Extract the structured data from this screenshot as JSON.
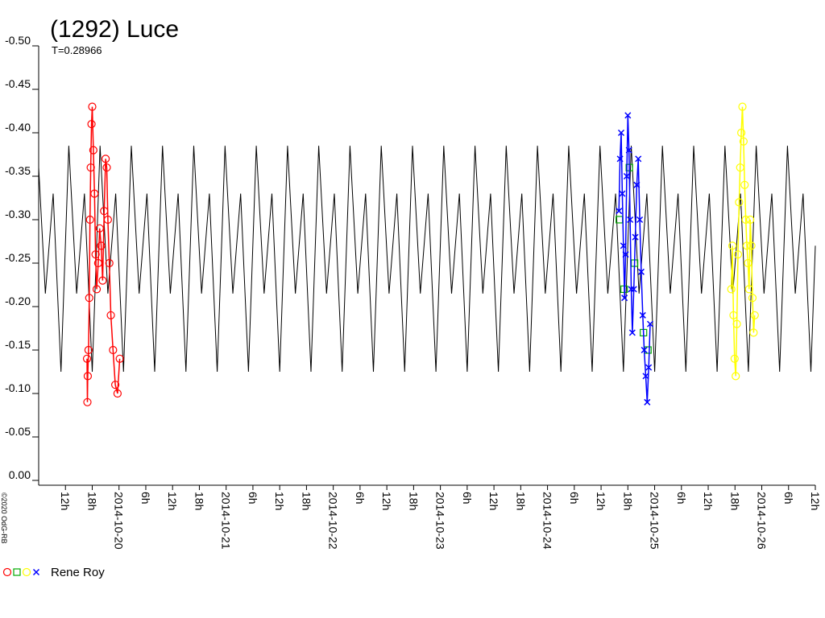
{
  "chart_data": {
    "type": "line",
    "title": "(1292) Luce",
    "subtitle": "T=0.28966",
    "copyright": "©2020 OdG-RB",
    "legend_label": "Rene Roy",
    "ylim": [
      0,
      -0.5
    ],
    "yticks": [
      {
        "value": 0,
        "label": "0.00"
      },
      {
        "value": -0.05,
        "label": "-0.05"
      },
      {
        "value": -0.1,
        "label": "-0.10"
      },
      {
        "value": -0.15,
        "label": "-0.15"
      },
      {
        "value": -0.2,
        "label": "-0.20"
      },
      {
        "value": -0.25,
        "label": "-0.25"
      },
      {
        "value": -0.3,
        "label": "-0.30"
      },
      {
        "value": -0.35,
        "label": "-0.35"
      },
      {
        "value": -0.4,
        "label": "-0.40"
      },
      {
        "value": -0.45,
        "label": "-0.45"
      },
      {
        "value": -0.5,
        "label": "-0.50"
      }
    ],
    "xlim": [
      "2014-10-19 06:00",
      "2014-10-26 12:00"
    ],
    "xticks": [
      {
        "value": "2014-10-19 12:00",
        "label": "12h"
      },
      {
        "value": "2014-10-19 18:00",
        "label": "18h"
      },
      {
        "value": "2014-10-20 00:00",
        "label": "2014-10-20"
      },
      {
        "value": "2014-10-20 06:00",
        "label": "6h"
      },
      {
        "value": "2014-10-20 12:00",
        "label": "12h"
      },
      {
        "value": "2014-10-20 18:00",
        "label": "18h"
      },
      {
        "value": "2014-10-21 00:00",
        "label": "2014-10-21"
      },
      {
        "value": "2014-10-21 06:00",
        "label": "6h"
      },
      {
        "value": "2014-10-21 12:00",
        "label": "12h"
      },
      {
        "value": "2014-10-21 18:00",
        "label": "18h"
      },
      {
        "value": "2014-10-22 00:00",
        "label": "2014-10-22"
      },
      {
        "value": "2014-10-22 06:00",
        "label": "6h"
      },
      {
        "value": "2014-10-22 12:00",
        "label": "12h"
      },
      {
        "value": "2014-10-22 18:00",
        "label": "18h"
      },
      {
        "value": "2014-10-23 00:00",
        "label": "2014-10-23"
      },
      {
        "value": "2014-10-23 06:00",
        "label": "6h"
      },
      {
        "value": "2014-10-23 12:00",
        "label": "12h"
      },
      {
        "value": "2014-10-23 18:00",
        "label": "18h"
      },
      {
        "value": "2014-10-24 00:00",
        "label": "2014-10-24"
      },
      {
        "value": "2014-10-24 06:00",
        "label": "6h"
      },
      {
        "value": "2014-10-24 12:00",
        "label": "12h"
      },
      {
        "value": "2014-10-24 18:00",
        "label": "18h"
      },
      {
        "value": "2014-10-25 00:00",
        "label": "2014-10-25"
      },
      {
        "value": "2014-10-25 06:00",
        "label": "6h"
      },
      {
        "value": "2014-10-25 12:00",
        "label": "12h"
      },
      {
        "value": "2014-10-25 18:00",
        "label": "18h"
      },
      {
        "value": "2014-10-26 00:00",
        "label": "2014-10-26"
      },
      {
        "value": "2014-10-26 06:00",
        "label": "6h"
      },
      {
        "value": "2014-10-26 12:00",
        "label": "12h"
      }
    ],
    "series": [
      {
        "type": "line",
        "color": "#000000",
        "x": [
          "2014-10-19 06:00",
          "2014-10-19 07:30",
          "2014-10-19 09:15",
          "2014-10-19 11:00",
          "2014-10-19 12:45",
          "2014-10-19 14:30",
          "2014-10-19 16:15",
          "2014-10-19 18:00",
          "2014-10-19 19:45",
          "2014-10-19 21:30",
          "2014-10-19 23:15",
          "2014-10-20 01:00",
          "2014-10-20 02:45",
          "2014-10-20 04:30",
          "2014-10-20 06:15",
          "2014-10-20 08:00",
          "2014-10-20 09:45",
          "2014-10-20 11:30",
          "2014-10-20 13:15",
          "2014-10-20 15:00",
          "2014-10-20 16:45",
          "2014-10-20 18:30",
          "2014-10-20 20:15",
          "2014-10-20 22:00",
          "2014-10-20 23:45",
          "2014-10-21 01:30",
          "2014-10-21 03:15",
          "2014-10-21 05:00",
          "2014-10-21 06:45",
          "2014-10-21 08:30",
          "2014-10-21 10:15",
          "2014-10-21 12:00",
          "2014-10-21 13:45",
          "2014-10-21 15:30",
          "2014-10-21 17:15",
          "2014-10-21 19:00",
          "2014-10-21 20:45",
          "2014-10-21 22:30",
          "2014-10-22 00:15",
          "2014-10-22 02:00",
          "2014-10-22 03:45",
          "2014-10-22 05:30",
          "2014-10-22 07:15",
          "2014-10-22 09:00",
          "2014-10-22 10:45",
          "2014-10-22 12:30",
          "2014-10-22 14:15",
          "2014-10-22 16:00",
          "2014-10-22 17:45",
          "2014-10-22 19:30",
          "2014-10-22 21:15",
          "2014-10-22 23:00",
          "2014-10-23 00:45",
          "2014-10-23 02:30",
          "2014-10-23 04:15",
          "2014-10-23 06:00",
          "2014-10-23 07:45",
          "2014-10-23 09:30",
          "2014-10-23 11:15",
          "2014-10-23 13:00",
          "2014-10-23 14:45",
          "2014-10-23 16:30",
          "2014-10-23 18:15",
          "2014-10-23 20:00",
          "2014-10-23 21:45",
          "2014-10-23 23:30",
          "2014-10-24 01:15",
          "2014-10-24 03:00",
          "2014-10-24 04:45",
          "2014-10-24 06:30",
          "2014-10-24 08:15",
          "2014-10-24 10:00",
          "2014-10-24 11:45",
          "2014-10-24 13:30",
          "2014-10-24 15:15",
          "2014-10-24 17:00",
          "2014-10-24 18:45",
          "2014-10-24 20:30",
          "2014-10-24 22:15",
          "2014-10-25 00:00",
          "2014-10-25 01:45",
          "2014-10-25 03:30",
          "2014-10-25 05:15",
          "2014-10-25 07:00",
          "2014-10-25 08:45",
          "2014-10-25 10:30",
          "2014-10-25 12:15",
          "2014-10-25 14:00",
          "2014-10-25 15:45",
          "2014-10-25 17:30",
          "2014-10-25 19:15",
          "2014-10-25 21:00",
          "2014-10-25 22:45",
          "2014-10-26 00:30",
          "2014-10-26 02:15",
          "2014-10-26 04:00",
          "2014-10-26 05:45",
          "2014-10-26 07:30",
          "2014-10-26 09:15",
          "2014-10-26 11:00",
          "2014-10-26 12:00"
        ],
        "values": [
          -0.36,
          -0.215,
          -0.33,
          -0.125,
          -0.385,
          -0.215,
          -0.33,
          -0.125,
          -0.385,
          -0.215,
          -0.33,
          -0.125,
          -0.385,
          -0.215,
          -0.33,
          -0.125,
          -0.385,
          -0.215,
          -0.33,
          -0.125,
          -0.385,
          -0.215,
          -0.33,
          -0.125,
          -0.385,
          -0.215,
          -0.33,
          -0.125,
          -0.385,
          -0.215,
          -0.33,
          -0.125,
          -0.385,
          -0.215,
          -0.33,
          -0.125,
          -0.385,
          -0.215,
          -0.33,
          -0.125,
          -0.385,
          -0.215,
          -0.33,
          -0.125,
          -0.385,
          -0.215,
          -0.33,
          -0.125,
          -0.385,
          -0.215,
          -0.33,
          -0.125,
          -0.385,
          -0.215,
          -0.33,
          -0.125,
          -0.385,
          -0.215,
          -0.33,
          -0.125,
          -0.385,
          -0.215,
          -0.33,
          -0.125,
          -0.385,
          -0.215,
          -0.33,
          -0.125,
          -0.385,
          -0.215,
          -0.33,
          -0.125,
          -0.385,
          -0.215,
          -0.33,
          -0.125,
          -0.385,
          -0.215,
          -0.33,
          -0.125,
          -0.385,
          -0.215,
          -0.33,
          -0.125,
          -0.385,
          -0.215,
          -0.33,
          -0.125,
          -0.385,
          -0.215,
          -0.33,
          -0.125,
          -0.385,
          -0.215,
          -0.33,
          -0.125,
          -0.385,
          -0.215,
          -0.33,
          -0.125,
          -0.27
        ]
      },
      {
        "type": "scatter",
        "color": "#ff0000",
        "marker": "circle",
        "line": true,
        "x": [
          "2014-10-19 16:50",
          "2014-10-19 16:55",
          "2014-10-19 17:00",
          "2014-10-19 17:10",
          "2014-10-19 17:20",
          "2014-10-19 17:30",
          "2014-10-19 17:40",
          "2014-10-19 17:50",
          "2014-10-19 18:00",
          "2014-10-19 18:15",
          "2014-10-19 18:30",
          "2014-10-19 18:45",
          "2014-10-19 19:00",
          "2014-10-19 19:20",
          "2014-10-19 19:40",
          "2014-10-19 20:00",
          "2014-10-19 20:20",
          "2014-10-19 20:40",
          "2014-10-19 21:00",
          "2014-10-19 21:15",
          "2014-10-19 21:30",
          "2014-10-19 21:50",
          "2014-10-19 22:10",
          "2014-10-19 22:40",
          "2014-10-19 23:10",
          "2014-10-19 23:40",
          "2014-10-20 00:10"
        ],
        "values": [
          -0.14,
          -0.09,
          -0.12,
          -0.15,
          -0.21,
          -0.3,
          -0.36,
          -0.41,
          -0.43,
          -0.38,
          -0.33,
          -0.26,
          -0.22,
          -0.25,
          -0.29,
          -0.27,
          -0.23,
          -0.31,
          -0.37,
          -0.36,
          -0.3,
          -0.25,
          -0.19,
          -0.15,
          -0.11,
          -0.1,
          -0.14
        ]
      },
      {
        "type": "scatter",
        "color": "#00aa00",
        "marker": "square",
        "line": false,
        "x": [
          "2014-10-24 16:05",
          "2014-10-24 17:10",
          "2014-10-24 18:20",
          "2014-10-24 19:30",
          "2014-10-24 21:30",
          "2014-10-24 22:30"
        ],
        "values": [
          -0.3,
          -0.22,
          -0.36,
          -0.25,
          -0.17,
          -0.15
        ]
      },
      {
        "type": "scatter",
        "color": "#ffff00",
        "marker": "circle",
        "line": true,
        "x": [
          "2014-10-25 17:10",
          "2014-10-25 17:25",
          "2014-10-25 17:40",
          "2014-10-25 17:55",
          "2014-10-25 18:10",
          "2014-10-25 18:25",
          "2014-10-25 18:40",
          "2014-10-25 18:55",
          "2014-10-25 19:10",
          "2014-10-25 19:25",
          "2014-10-25 19:40",
          "2014-10-25 19:55",
          "2014-10-25 20:10",
          "2014-10-25 20:25",
          "2014-10-25 20:40",
          "2014-10-25 20:55",
          "2014-10-25 21:10",
          "2014-10-25 21:25",
          "2014-10-25 21:40",
          "2014-10-25 21:55",
          "2014-10-25 22:10",
          "2014-10-25 22:25"
        ],
        "values": [
          -0.22,
          -0.27,
          -0.19,
          -0.14,
          -0.12,
          -0.18,
          -0.26,
          -0.32,
          -0.36,
          -0.4,
          -0.43,
          -0.39,
          -0.34,
          -0.3,
          -0.27,
          -0.25,
          -0.22,
          -0.3,
          -0.27,
          -0.21,
          -0.17,
          -0.19
        ]
      },
      {
        "type": "scatter",
        "color": "#0000ff",
        "marker": "cross",
        "line": true,
        "x": [
          "2014-10-24 16:00",
          "2014-10-24 16:15",
          "2014-10-24 16:30",
          "2014-10-24 16:45",
          "2014-10-24 17:00",
          "2014-10-24 17:15",
          "2014-10-24 17:30",
          "2014-10-24 17:45",
          "2014-10-24 18:00",
          "2014-10-24 18:15",
          "2014-10-24 18:30",
          "2014-10-24 18:45",
          "2014-10-24 19:00",
          "2014-10-24 19:20",
          "2014-10-24 19:40",
          "2014-10-24 20:00",
          "2014-10-24 20:20",
          "2014-10-24 20:40",
          "2014-10-24 21:00",
          "2014-10-24 21:20",
          "2014-10-24 21:40",
          "2014-10-24 22:00",
          "2014-10-24 22:20",
          "2014-10-24 22:40",
          "2014-10-24 23:00"
        ],
        "values": [
          -0.31,
          -0.37,
          -0.4,
          -0.33,
          -0.27,
          -0.21,
          -0.26,
          -0.35,
          -0.42,
          -0.38,
          -0.3,
          -0.22,
          -0.17,
          -0.22,
          -0.28,
          -0.34,
          -0.37,
          -0.3,
          -0.24,
          -0.19,
          -0.15,
          -0.12,
          -0.09,
          -0.13,
          -0.18
        ]
      }
    ]
  }
}
